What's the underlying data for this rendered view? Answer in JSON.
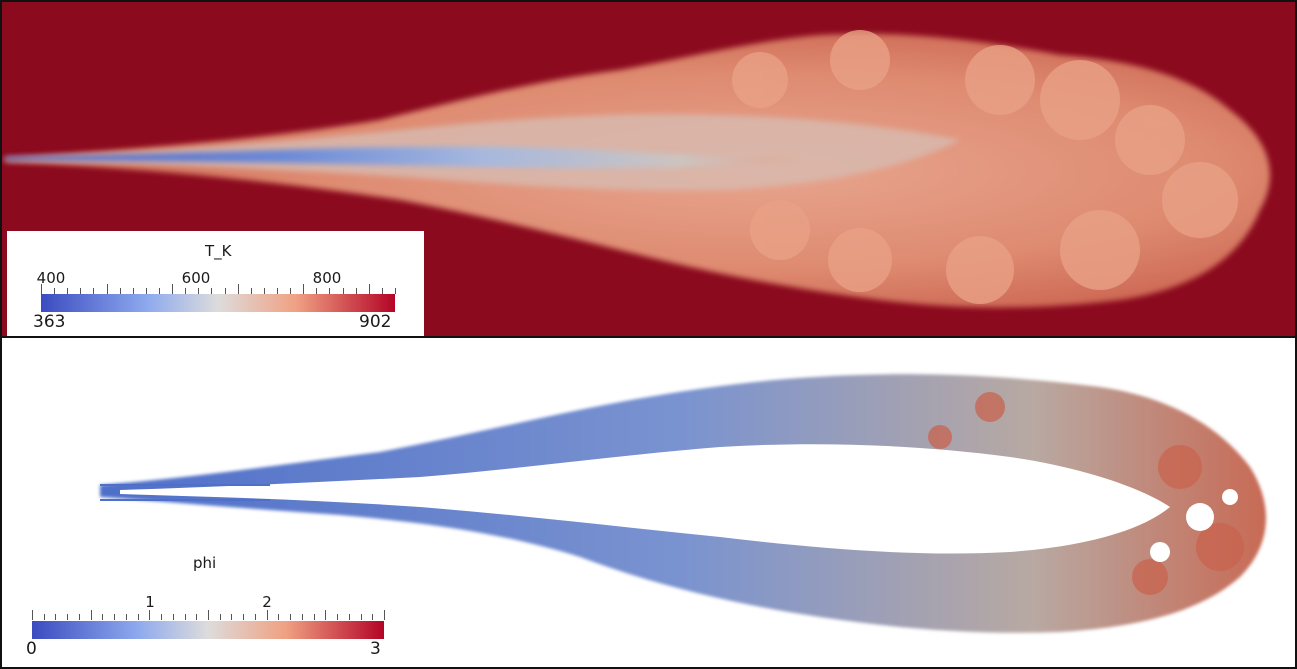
{
  "top_panel": {
    "legend": {
      "title": "T_K",
      "tick_labels": [
        "400",
        "600",
        "800"
      ],
      "tick_values": [
        400,
        600,
        800
      ],
      "min_label": "363",
      "max_label": "902",
      "min": 363,
      "max": 902
    }
  },
  "bottom_panel": {
    "legend": {
      "title": "phi",
      "tick_labels": [
        "1",
        "2"
      ],
      "tick_values": [
        1,
        2
      ],
      "min_label": "0",
      "max_label": "3",
      "min": 0,
      "max": 3
    }
  },
  "colors": {
    "colormap_low": "#3b4cc0",
    "colormap_mid": "#dddcdc",
    "colormap_high": "#b40426",
    "background_hot": "#8b0a1e",
    "flame_orange": "#e8907a"
  }
}
